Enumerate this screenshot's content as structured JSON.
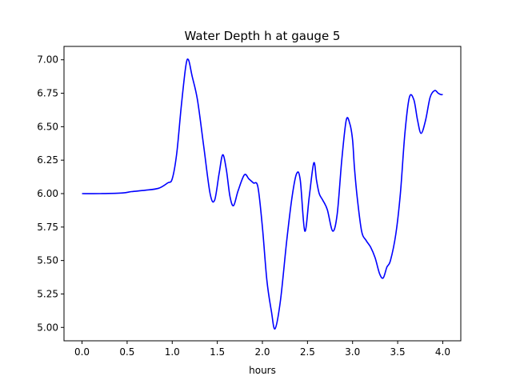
{
  "chart_data": {
    "type": "line",
    "title": "Water Depth h at gauge 5",
    "xlabel": "hours",
    "ylabel": "",
    "xlim": [
      -0.2,
      4.2
    ],
    "ylim": [
      4.9,
      7.1
    ],
    "xticks": [
      0.0,
      0.5,
      1.0,
      1.5,
      2.0,
      2.5,
      3.0,
      3.5,
      4.0
    ],
    "xtick_labels": [
      "0.0",
      "0.5",
      "1.0",
      "1.5",
      "2.0",
      "2.5",
      "3.0",
      "3.5",
      "4.0"
    ],
    "yticks": [
      5.0,
      5.25,
      5.5,
      5.75,
      6.0,
      6.25,
      6.5,
      6.75,
      7.0
    ],
    "ytick_labels": [
      "5.00",
      "5.25",
      "5.50",
      "5.75",
      "6.00",
      "6.25",
      "6.50",
      "6.75",
      "7.00"
    ],
    "grid": false,
    "legend": "none",
    "series": [
      {
        "color": "#0000ff",
        "x": [
          0.0,
          0.2,
          0.45,
          0.55,
          0.7,
          0.85,
          0.95,
          1.0,
          1.05,
          1.1,
          1.15,
          1.18,
          1.22,
          1.28,
          1.35,
          1.42,
          1.47,
          1.52,
          1.56,
          1.6,
          1.64,
          1.68,
          1.73,
          1.8,
          1.85,
          1.9,
          1.95,
          2.0,
          2.05,
          2.1,
          2.14,
          2.2,
          2.27,
          2.33,
          2.38,
          2.42,
          2.47,
          2.52,
          2.57,
          2.6,
          2.63,
          2.67,
          2.72,
          2.78,
          2.83,
          2.88,
          2.93,
          2.97,
          3.0,
          3.02,
          3.05,
          3.1,
          3.15,
          3.2,
          3.25,
          3.3,
          3.34,
          3.38,
          3.42,
          3.48,
          3.53,
          3.58,
          3.63,
          3.68,
          3.72,
          3.76,
          3.81,
          3.86,
          3.91,
          3.95,
          3.98,
          4.0
        ],
        "y": [
          6.0,
          6.0,
          6.005,
          6.015,
          6.025,
          6.04,
          6.08,
          6.11,
          6.3,
          6.65,
          6.95,
          7.0,
          6.88,
          6.7,
          6.35,
          6.0,
          5.95,
          6.15,
          6.29,
          6.18,
          5.98,
          5.91,
          6.02,
          6.14,
          6.11,
          6.08,
          6.05,
          5.75,
          5.35,
          5.12,
          4.99,
          5.2,
          5.65,
          5.98,
          6.15,
          6.1,
          5.72,
          5.98,
          6.23,
          6.1,
          6.0,
          5.95,
          5.88,
          5.72,
          5.85,
          6.25,
          6.55,
          6.52,
          6.4,
          6.2,
          5.98,
          5.72,
          5.65,
          5.6,
          5.52,
          5.4,
          5.37,
          5.45,
          5.5,
          5.7,
          6.0,
          6.45,
          6.72,
          6.7,
          6.55,
          6.45,
          6.55,
          6.72,
          6.77,
          6.75,
          6.74,
          6.74
        ]
      }
    ]
  }
}
